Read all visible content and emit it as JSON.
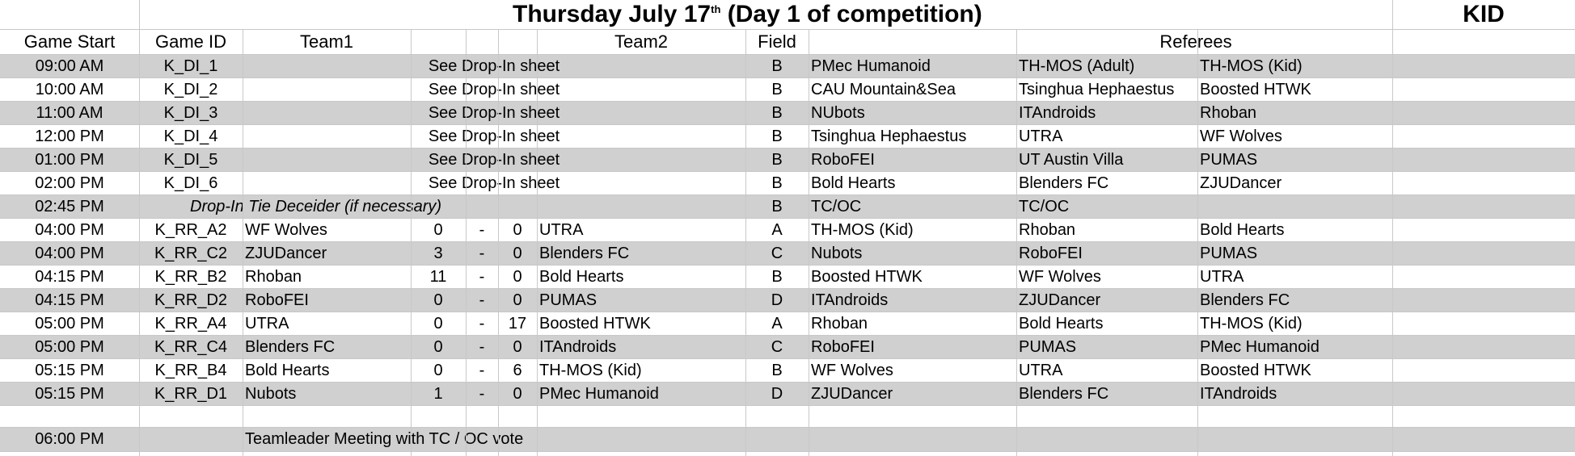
{
  "title": {
    "prefix": "Thursday July 17",
    "sup": "th",
    "suffix": " (Day 1 of competition)"
  },
  "kid_label": "KID",
  "headers": {
    "game_start": "Game Start",
    "game_id": "Game ID",
    "team1": "Team1",
    "team2": "Team2",
    "field": "Field",
    "referees": "Referees"
  },
  "rows": [
    {
      "time": "09:00 AM",
      "id": "K_DI_1",
      "note": "See Drop-In sheet",
      "field": "B",
      "ref1": "PMec Humanoid",
      "ref2": "TH-MOS (Adult)",
      "ref3": "TH-MOS (Kid)"
    },
    {
      "time": "10:00 AM",
      "id": "K_DI_2",
      "note": "See Drop-In sheet",
      "field": "B",
      "ref1": "CAU Mountain&Sea",
      "ref2": "Tsinghua Hephaestus",
      "ref3": "Boosted HTWK"
    },
    {
      "time": "11:00 AM",
      "id": "K_DI_3",
      "note": "See Drop-In sheet",
      "field": "B",
      "ref1": "NUbots",
      "ref2": "ITAndroids",
      "ref3": "Rhoban"
    },
    {
      "time": "12:00 PM",
      "id": "K_DI_4",
      "note": "See Drop-In sheet",
      "field": "B",
      "ref1": "Tsinghua Hephaestus",
      "ref2": "UTRA",
      "ref3": "WF Wolves"
    },
    {
      "time": "01:00 PM",
      "id": "K_DI_5",
      "note": "See Drop-In sheet",
      "field": "B",
      "ref1": "RoboFEI",
      "ref2": "UT Austin Villa",
      "ref3": "PUMAS"
    },
    {
      "time": "02:00 PM",
      "id": "K_DI_6",
      "note": "See Drop-In sheet",
      "field": "B",
      "ref1": "Bold Hearts",
      "ref2": "Blenders FC",
      "ref3": "ZJUDancer"
    },
    {
      "time": "02:45 PM",
      "id": "",
      "note": "Drop-In Tie Deceider (if necessary)",
      "field": "B",
      "ref1": "TC/OC",
      "ref2": "TC/OC",
      "ref3": ""
    },
    {
      "time": "04:00 PM",
      "id": "K_RR_A2",
      "team1": "WF Wolves",
      "s1": "0",
      "dash": "-",
      "s2": "0",
      "team2": "UTRA",
      "field": "A",
      "ref1": "TH-MOS (Kid)",
      "ref2": "Rhoban",
      "ref3": "Bold Hearts"
    },
    {
      "time": "04:00 PM",
      "id": "K_RR_C2",
      "team1": "ZJUDancer",
      "s1": "3",
      "dash": "-",
      "s2": "0",
      "team2": "Blenders FC",
      "field": "C",
      "ref1": "Nubots",
      "ref2": "RoboFEI",
      "ref3": "PUMAS"
    },
    {
      "time": "04:15 PM",
      "id": "K_RR_B2",
      "team1": "Rhoban",
      "s1": "11",
      "dash": "-",
      "s2": "0",
      "team2": "Bold Hearts",
      "field": "B",
      "ref1": "Boosted HTWK",
      "ref2": "WF Wolves",
      "ref3": "UTRA"
    },
    {
      "time": "04:15 PM",
      "id": "K_RR_D2",
      "team1": "RoboFEI",
      "s1": "0",
      "dash": "-",
      "s2": "0",
      "team2": "PUMAS",
      "field": "D",
      "ref1": "ITAndroids",
      "ref2": "ZJUDancer",
      "ref3": "Blenders FC"
    },
    {
      "time": "05:00 PM",
      "id": "K_RR_A4",
      "team1": "UTRA",
      "s1": "0",
      "dash": "-",
      "s2": "17",
      "team2": "Boosted HTWK",
      "field": "A",
      "ref1": "Rhoban",
      "ref2": "Bold Hearts",
      "ref3": "TH-MOS (Kid)"
    },
    {
      "time": "05:00 PM",
      "id": "K_RR_C4",
      "team1": "Blenders FC",
      "s1": "0",
      "dash": "-",
      "s2": "0",
      "team2": "ITAndroids",
      "field": "C",
      "ref1": "RoboFEI",
      "ref2": "PUMAS",
      "ref3": "PMec Humanoid"
    },
    {
      "time": "05:15 PM",
      "id": "K_RR_B4",
      "team1": "Bold Hearts",
      "s1": "0",
      "dash": "-",
      "s2": "6",
      "team2": "TH-MOS (Kid)",
      "field": "B",
      "ref1": "WF Wolves",
      "ref2": "UTRA",
      "ref3": "Boosted HTWK"
    },
    {
      "time": "05:15 PM",
      "id": "K_RR_D1",
      "team1": "Nubots",
      "s1": "1",
      "dash": "-",
      "s2": "0",
      "team2": "PMec Humanoid",
      "field": "D",
      "ref1": "ZJUDancer",
      "ref2": "Blenders FC",
      "ref3": "ITAndroids"
    }
  ],
  "meeting": {
    "time": "06:00 PM",
    "text": "Teamleader Meeting with TC / OC vote"
  }
}
